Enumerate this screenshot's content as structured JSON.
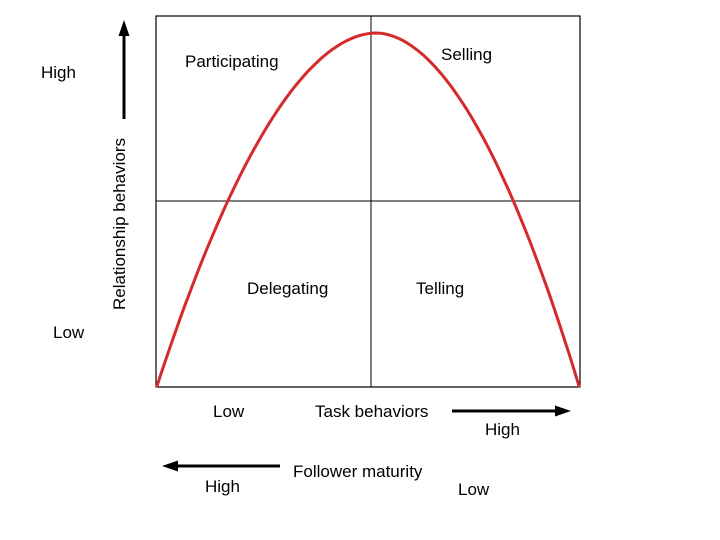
{
  "diagram": {
    "quadrants": {
      "top_left": "Participating",
      "top_right": "Selling",
      "bottom_left": "Delegating",
      "bottom_right": "Telling"
    },
    "y_axis": {
      "label": "Relationship behaviors",
      "high": "High",
      "low": "Low"
    },
    "x_axis": {
      "low": "Low",
      "label": "Task behaviors",
      "high": "High"
    },
    "maturity_axis": {
      "high": "High",
      "label": "Follower maturity",
      "low": "Low"
    },
    "colors": {
      "curve": "#d62a2a",
      "lines": "#000000"
    }
  }
}
